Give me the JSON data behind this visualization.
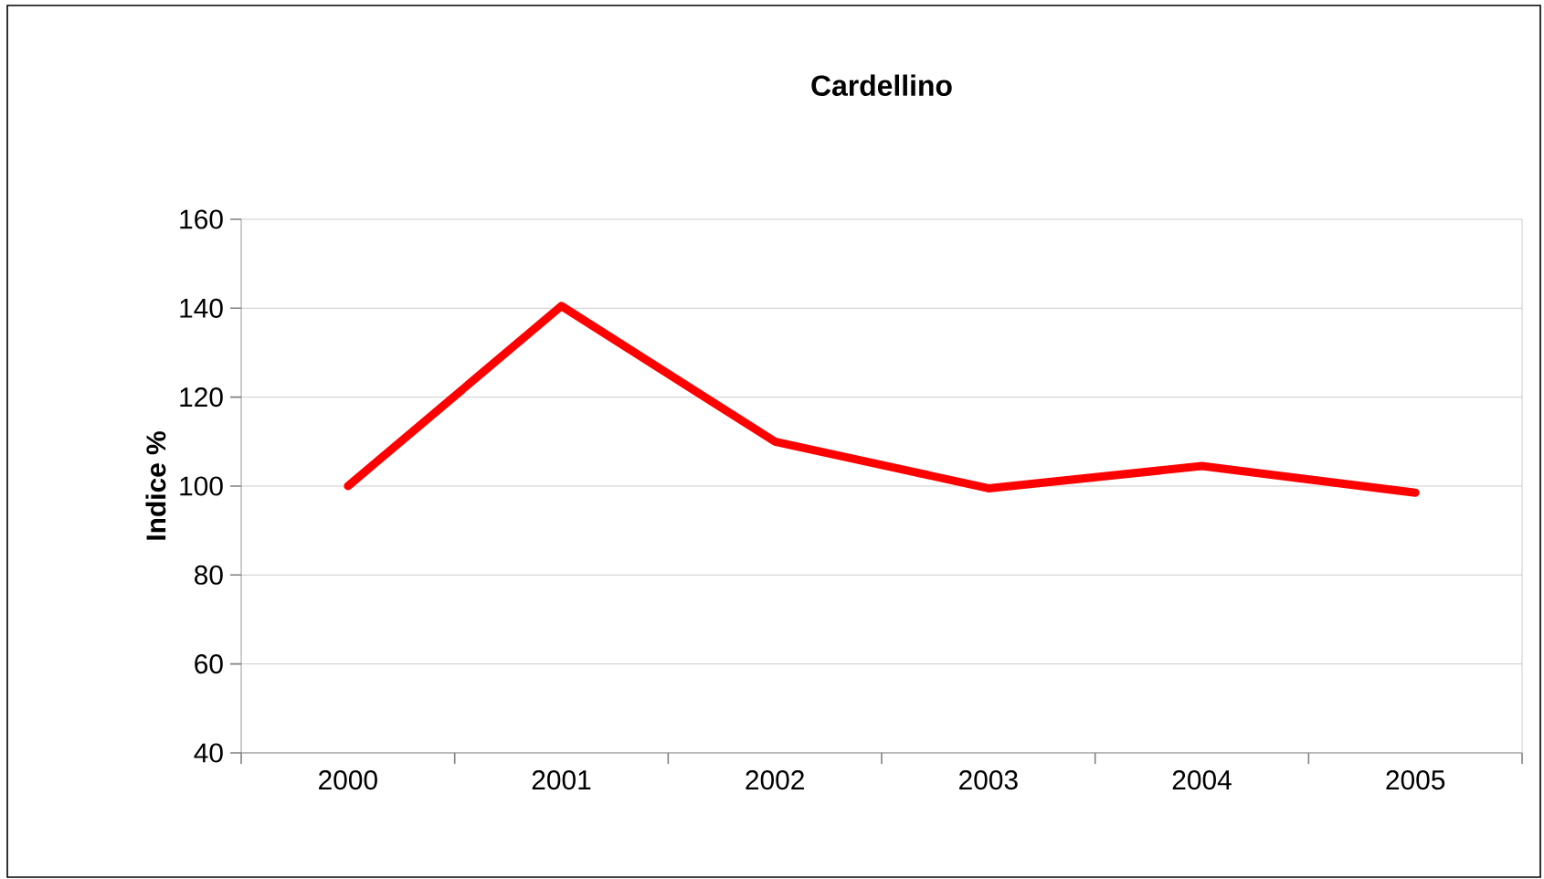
{
  "chart_data": {
    "type": "line",
    "title": "Cardellino",
    "ylabel": "Indice %",
    "categories": [
      "2000",
      "2001",
      "2002",
      "2003",
      "2004",
      "2005"
    ],
    "series": [
      {
        "color": "#ff0000",
        "values": [
          100,
          140.5,
          110,
          99.5,
          104.5,
          98.5
        ]
      }
    ],
    "ylim": [
      40,
      160
    ],
    "yticks": [
      40,
      60,
      80,
      100,
      120,
      140,
      160
    ],
    "grid": "y",
    "marker": "none",
    "line_style": "solid"
  }
}
